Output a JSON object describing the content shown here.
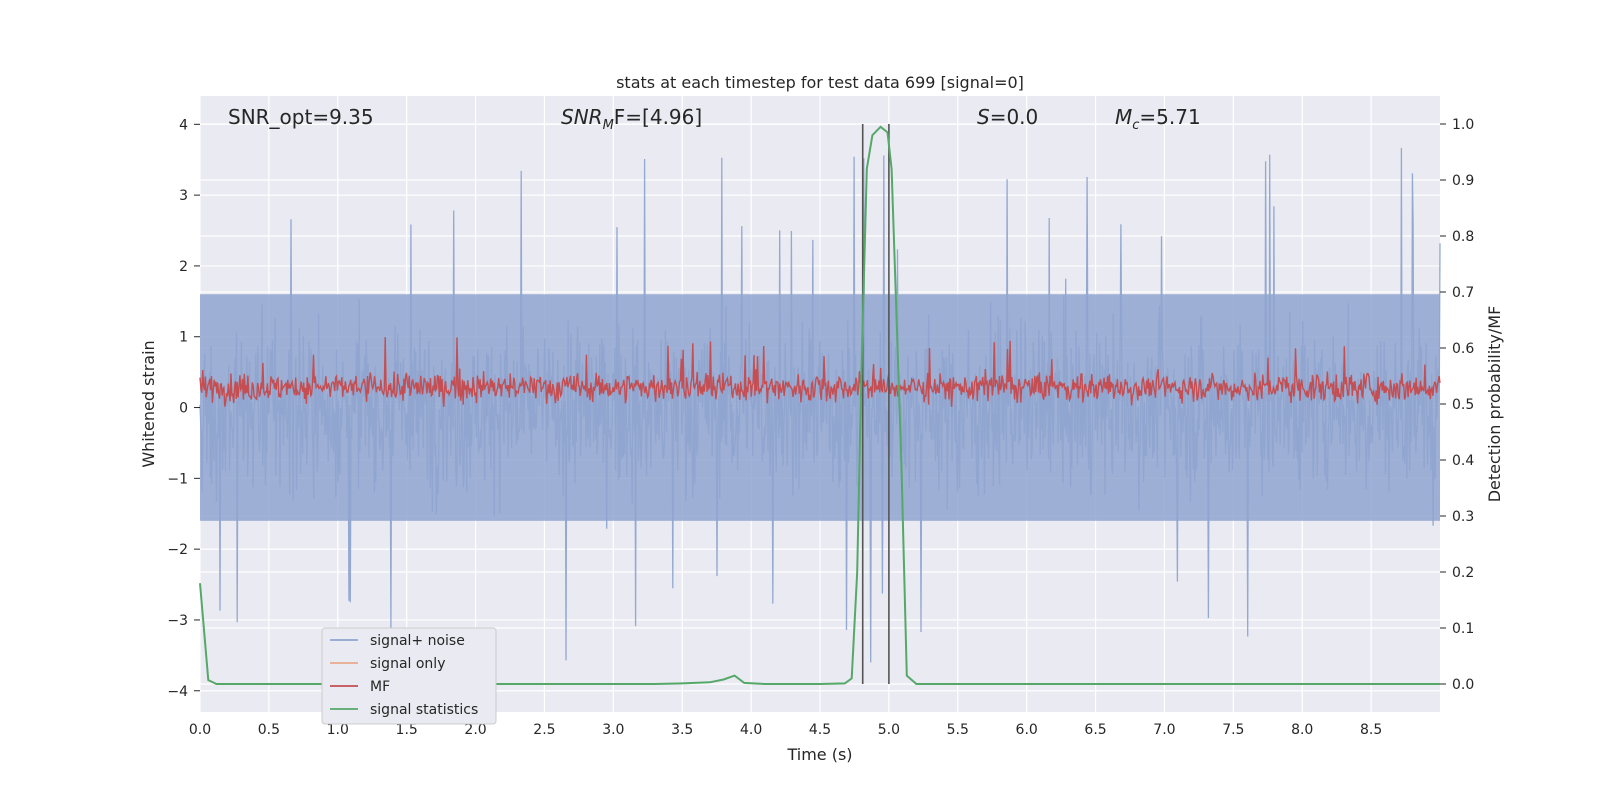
{
  "chart_data": {
    "type": "line",
    "title": "stats at each timestep for test data 699 [signal=0]",
    "xlabel": "Time (s)",
    "ylabel_left": "Whitened strain",
    "ylabel_right": "Detection probability/MF",
    "xlim": [
      0.0,
      9.0
    ],
    "ylim_left": [
      -4.3,
      4.4
    ],
    "ylim_right": [
      -0.05,
      1.05
    ],
    "x_ticks": [
      "0.0",
      "0.5",
      "1.0",
      "1.5",
      "2.0",
      "2.5",
      "3.0",
      "3.5",
      "4.0",
      "4.5",
      "5.0",
      "5.5",
      "6.0",
      "6.5",
      "7.0",
      "7.5",
      "8.0",
      "8.5"
    ],
    "y_ticks_left": [
      "4",
      "3",
      "2",
      "1",
      "0",
      "−1",
      "−2",
      "−3",
      "−4"
    ],
    "y_ticks_right": [
      "1.0",
      "0.9",
      "0.8",
      "0.7",
      "0.6",
      "0.5",
      "0.4",
      "0.3",
      "0.2",
      "0.1",
      "0.0"
    ],
    "grid": true,
    "legend_position": "lower-left",
    "annotations": {
      "snr_opt": "SNR_opt=9.35",
      "snr_mf_main": "SNR",
      "snr_mf_sub": "M",
      "snr_mf_rest": "F=[4.96]",
      "s_main": "S",
      "s_rest": "=0.0",
      "mc_main": "M",
      "mc_sub": "c",
      "mc_rest": "=5.71"
    },
    "vertical_lines_x": [
      4.81,
      5.0
    ],
    "series": [
      {
        "name": "signal+ noise",
        "axis": "left",
        "color": "#8fa5cf",
        "description_values": "dense noise spanning roughly -2 to +2 with spikes to about +/-4",
        "envelope": {
          "typical_high": 1.6,
          "typical_low": -1.6,
          "max": 4.0,
          "min": -3.6
        }
      },
      {
        "name": "signal only",
        "axis": "left",
        "color": "#e8a98e",
        "values": []
      },
      {
        "name": "MF",
        "axis": "right",
        "color": "#c44e52",
        "envelope": {
          "typical_high": 0.56,
          "typical_low": 0.5,
          "max": 0.62,
          "min": 0.495
        }
      },
      {
        "name": "signal statistics",
        "axis": "right",
        "color": "#55a868",
        "x": [
          0.0,
          0.06,
          0.12,
          0.2,
          0.5,
          1.0,
          2.0,
          3.0,
          3.3,
          3.5,
          3.7,
          3.8,
          3.88,
          3.95,
          4.1,
          4.5,
          4.68,
          4.73,
          4.77,
          4.8,
          4.84,
          4.88,
          4.94,
          4.99,
          5.02,
          5.09,
          5.13,
          5.2,
          6.0,
          7.0,
          8.0,
          9.0
        ],
        "y": [
          0.18,
          0.007,
          0.0,
          0.0,
          0.0,
          0.0,
          0.0,
          0.0,
          0.0,
          0.001,
          0.003,
          0.008,
          0.015,
          0.002,
          0.0,
          0.0,
          0.001,
          0.01,
          0.2,
          0.55,
          0.92,
          0.98,
          0.995,
          0.985,
          0.92,
          0.4,
          0.015,
          0.0,
          0.0,
          0.0,
          0.0,
          0.0
        ]
      }
    ]
  },
  "colors": {
    "plot_background": "#eaeaf2",
    "grid": "#ffffff",
    "vertical_line": "#555555",
    "legend_bg": "#eaeaf2",
    "legend_border": "#cccccc"
  }
}
